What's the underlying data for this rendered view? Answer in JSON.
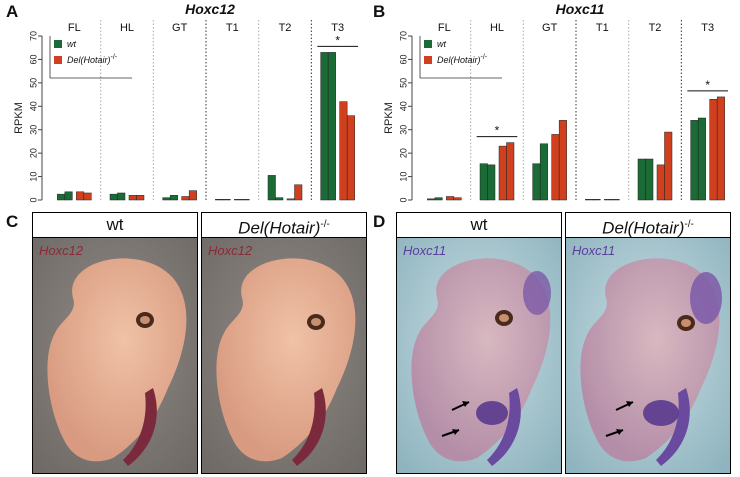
{
  "panels": {
    "A": {
      "letter": "A"
    },
    "B": {
      "letter": "B"
    },
    "C": {
      "letter": "C",
      "left_header": "wt",
      "right_header": "Del(Hotair)",
      "right_sup": "-/-",
      "stain_label": "Hoxc12",
      "stain_color": "#8a2a3a"
    },
    "D": {
      "letter": "D",
      "left_header": "wt",
      "right_header": "Del(Hotair)",
      "right_sup": "-/-",
      "stain_label": "Hoxc11",
      "stain_color": "#5a3f9a"
    }
  },
  "chart_data": [
    {
      "type": "bar",
      "title": "Hoxc12",
      "ylabel": "RPKM",
      "ylim": [
        0,
        70
      ],
      "yticks": [
        0,
        10,
        20,
        30,
        40,
        50,
        60,
        70
      ],
      "groups": [
        "FL",
        "HL",
        "GT",
        "T1",
        "T2",
        "T3"
      ],
      "legend": {
        "entries": [
          "wt",
          "Del(Hotair)"
        ],
        "sup": "-/-"
      },
      "series": [
        {
          "name": "wt",
          "color": "#1a6b35",
          "values": [
            [
              2.5,
              3.5
            ],
            [
              2.5,
              3.0
            ],
            [
              1.0,
              2.0
            ],
            [
              0.3,
              0.3
            ],
            [
              10.5,
              1.0
            ],
            [
              63,
              63
            ]
          ]
        },
        {
          "name": "Del(Hotair)-/-",
          "color": "#d0401f",
          "values": [
            [
              3.5,
              3.0
            ],
            [
              2.0,
              2.0
            ],
            [
              1.5,
              4.0
            ],
            [
              0.3,
              0.3
            ],
            [
              0.5,
              6.5
            ],
            [
              42,
              36
            ]
          ]
        }
      ],
      "significance": [
        {
          "group": "T3",
          "label": "*"
        }
      ]
    },
    {
      "type": "bar",
      "title": "Hoxc11",
      "ylabel": "RPKM",
      "ylim": [
        0,
        70
      ],
      "yticks": [
        0,
        10,
        20,
        30,
        40,
        50,
        60,
        70
      ],
      "groups": [
        "FL",
        "HL",
        "GT",
        "T1",
        "T2",
        "T3"
      ],
      "legend": {
        "entries": [
          "wt",
          "Del(Hotair)"
        ],
        "sup": "-/-"
      },
      "series": [
        {
          "name": "wt",
          "color": "#1a6b35",
          "values": [
            [
              0.5,
              1.0
            ],
            [
              15.5,
              15.0
            ],
            [
              15.5,
              24.0
            ],
            [
              0.3,
              0.3
            ],
            [
              17.5,
              17.5
            ],
            [
              34,
              35
            ]
          ]
        },
        {
          "name": "Del(Hotair)-/-",
          "color": "#d0401f",
          "values": [
            [
              1.5,
              1.0
            ],
            [
              23,
              24.5
            ],
            [
              28,
              34
            ],
            [
              0.3,
              0.3
            ],
            [
              15,
              29
            ],
            [
              43,
              44
            ]
          ]
        }
      ],
      "significance": [
        {
          "group": "HL",
          "label": "*"
        },
        {
          "group": "T3",
          "label": "*"
        }
      ]
    }
  ]
}
